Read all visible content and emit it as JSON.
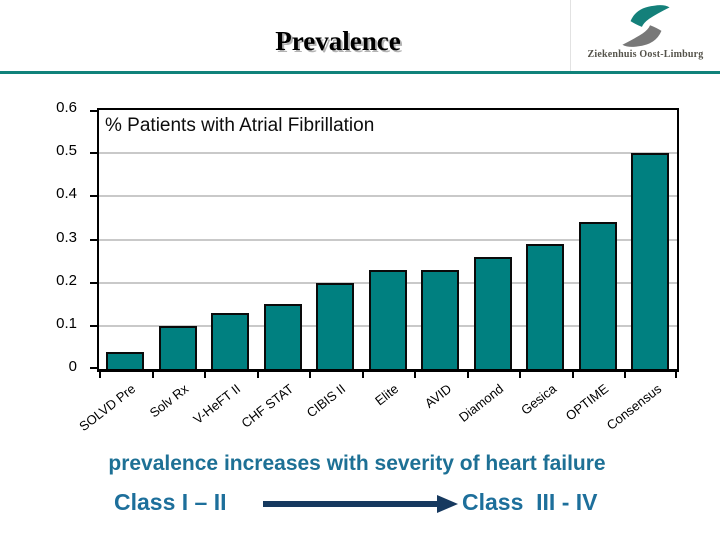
{
  "header": {
    "title": "Prevalence",
    "logo": {
      "name": "Ziekenhuis Oost-Limburg"
    }
  },
  "chart_data": {
    "type": "bar",
    "title": "% Patients with Atrial Fibrillation",
    "categories": [
      "SOLVD Pre",
      "Solv Rx",
      "V-HeFT II",
      "CHF STAT",
      "CIBIS II",
      "Elite",
      "AVID",
      "Diamond",
      "Gesica",
      "OPTIME",
      "Consensus"
    ],
    "values": [
      0.04,
      0.1,
      0.13,
      0.15,
      0.2,
      0.23,
      0.23,
      0.26,
      0.29,
      0.34,
      0.5
    ],
    "xlabel": "",
    "ylabel": "",
    "ylim": [
      0,
      0.6
    ],
    "yticks": [
      0.6,
      0.5,
      0.4,
      0.3,
      0.2,
      0.1,
      0
    ],
    "grid": true,
    "legend": "none"
  },
  "footer": {
    "caption": "prevalence increases with severity of heart failure",
    "class_left": "Class I – II",
    "class_right": "Class  III - IV",
    "arrow_icon": "right-arrow"
  },
  "colors": {
    "bar_fill": "#008080",
    "bar_border": "#0a0a0a",
    "divider_teal": "#10827a",
    "gridline": "#c9c9c9",
    "caption_text": "#1d7095",
    "class_text": "#1d6f9b",
    "arrow": "#16395f",
    "logo_teal": "#14807a",
    "logo_gray": "#787878"
  }
}
